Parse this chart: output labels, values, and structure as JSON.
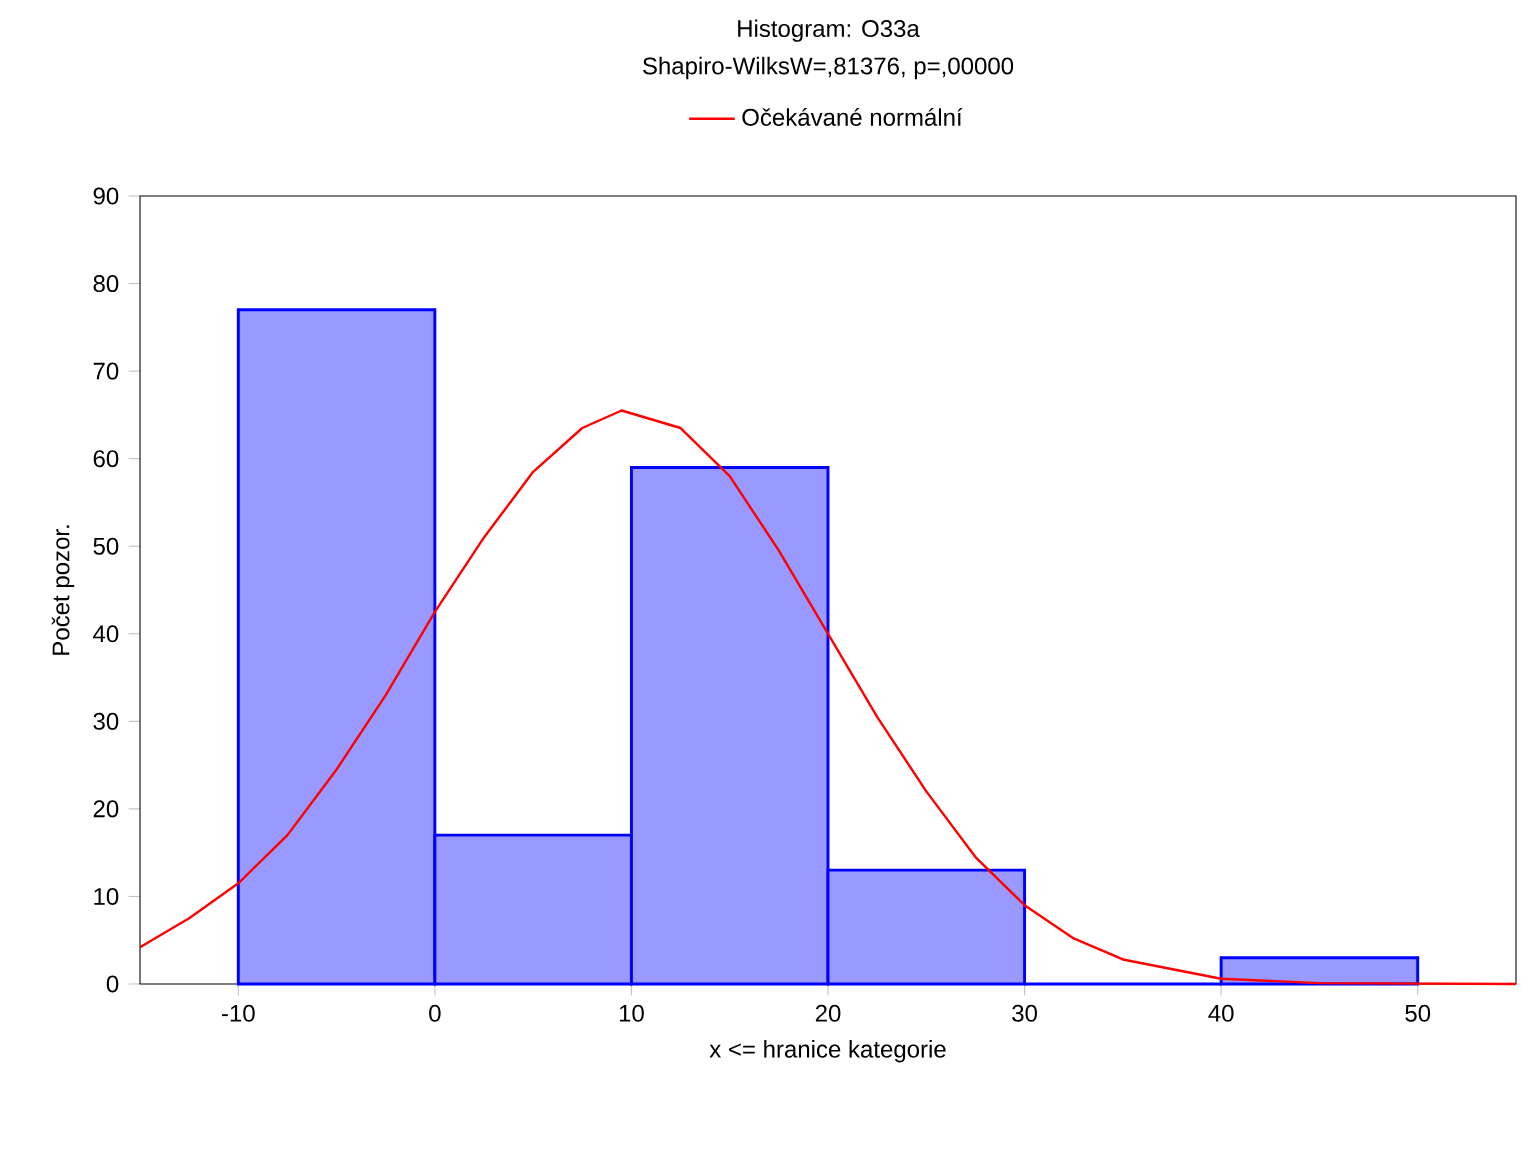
{
  "chart_data": {
    "type": "histogram",
    "title": "Histogram: O33a",
    "subtitle": "Shapiro-WilksW=,81376, p=,00000",
    "xlabel": "x <= hranice kategorie",
    "ylabel": "Počet pozor.",
    "xlim": [
      -15,
      55
    ],
    "ylim": [
      0,
      90
    ],
    "xticks": [
      -10,
      0,
      10,
      20,
      30,
      40,
      50
    ],
    "yticks": [
      0,
      10,
      20,
      30,
      40,
      50,
      60,
      70,
      80,
      90
    ],
    "grid": false,
    "legend": "top",
    "series": [
      {
        "color": "#0000ff",
        "bins": [
          -10,
          0,
          10,
          20,
          30,
          40,
          50
        ],
        "values": [
          77,
          17,
          59,
          13,
          0,
          3
        ]
      },
      {
        "type": "line",
        "name": "Očekávané normální",
        "color": "#ff0000",
        "x": [
          -15,
          -12.5,
          -10,
          -7.5,
          -5,
          -2.5,
          0,
          2.5,
          5,
          7.5,
          9.5,
          12.5,
          15,
          17.5,
          20,
          22.5,
          25,
          27.5,
          30,
          32.5,
          35,
          40,
          45,
          55
        ],
        "values": [
          4.2,
          7.5,
          11.5,
          17,
          24.5,
          33,
          42.5,
          51,
          58.5,
          63.5,
          65.5,
          63.5,
          58,
          49.5,
          40,
          30.5,
          22,
          14.5,
          9,
          5.2,
          2.8,
          0.6,
          0.1,
          0
        ]
      }
    ]
  }
}
